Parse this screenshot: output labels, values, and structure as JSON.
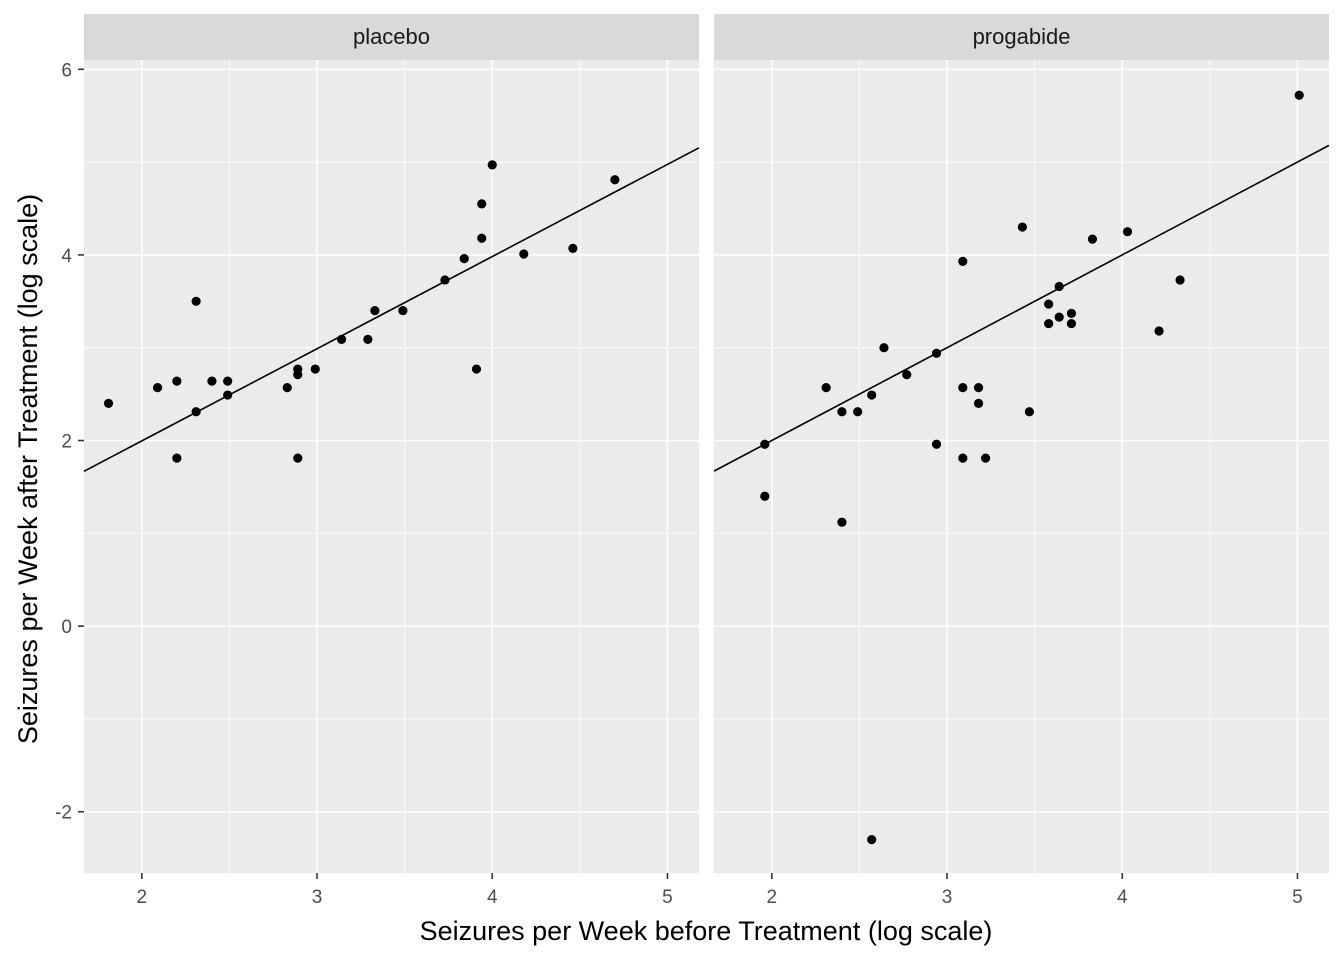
{
  "chart_data": {
    "type": "scatter",
    "xlabel": "Seizures per Week before Treatment (log scale)",
    "ylabel": "Seizures per Week after Treatment (log scale)",
    "xlim": [
      1.67,
      5.18
    ],
    "ylim": [
      -2.66,
      6.1
    ],
    "x_ticks": [
      2,
      3,
      4,
      5
    ],
    "y_ticks": [
      -2,
      0,
      2,
      4,
      6
    ],
    "grid": true,
    "facets": [
      {
        "label": "placebo",
        "fit_line": {
          "intercept": 0.01,
          "slope": 0.993
        },
        "points": [
          [
            1.81,
            2.4
          ],
          [
            2.09,
            2.57
          ],
          [
            2.2,
            2.64
          ],
          [
            2.2,
            1.81
          ],
          [
            2.31,
            3.5
          ],
          [
            2.31,
            2.31
          ],
          [
            2.4,
            2.64
          ],
          [
            2.49,
            2.64
          ],
          [
            2.49,
            2.49
          ],
          [
            2.83,
            2.57
          ],
          [
            2.89,
            2.77
          ],
          [
            2.89,
            2.71
          ],
          [
            2.89,
            1.81
          ],
          [
            2.99,
            2.77
          ],
          [
            3.14,
            3.09
          ],
          [
            3.29,
            3.09
          ],
          [
            3.33,
            3.4
          ],
          [
            3.49,
            3.4
          ],
          [
            3.73,
            3.73
          ],
          [
            3.84,
            3.96
          ],
          [
            3.91,
            2.77
          ],
          [
            3.94,
            4.55
          ],
          [
            3.94,
            4.18
          ],
          [
            4.0,
            4.97
          ],
          [
            4.18,
            4.01
          ],
          [
            4.46,
            4.07
          ],
          [
            4.7,
            4.81
          ]
        ]
      },
      {
        "label": "progabide",
        "fit_line": {
          "intercept": 0.0,
          "slope": 1.0
        },
        "points": [
          [
            1.96,
            1.96
          ],
          [
            1.96,
            1.4
          ],
          [
            2.31,
            2.57
          ],
          [
            2.4,
            2.31
          ],
          [
            2.4,
            1.12
          ],
          [
            2.49,
            2.31
          ],
          [
            2.57,
            2.49
          ],
          [
            2.57,
            -2.3
          ],
          [
            2.64,
            3.0
          ],
          [
            2.77,
            2.71
          ],
          [
            2.94,
            2.94
          ],
          [
            2.94,
            1.96
          ],
          [
            3.09,
            3.93
          ],
          [
            3.09,
            2.57
          ],
          [
            3.09,
            1.81
          ],
          [
            3.18,
            2.57
          ],
          [
            3.18,
            2.4
          ],
          [
            3.22,
            1.81
          ],
          [
            3.43,
            4.3
          ],
          [
            3.47,
            2.31
          ],
          [
            3.58,
            3.47
          ],
          [
            3.58,
            3.26
          ],
          [
            3.64,
            3.66
          ],
          [
            3.64,
            3.33
          ],
          [
            3.71,
            3.37
          ],
          [
            3.71,
            3.26
          ],
          [
            3.83,
            4.17
          ],
          [
            4.03,
            4.25
          ],
          [
            4.21,
            3.18
          ],
          [
            4.33,
            3.73
          ],
          [
            5.01,
            5.72
          ]
        ]
      }
    ]
  }
}
